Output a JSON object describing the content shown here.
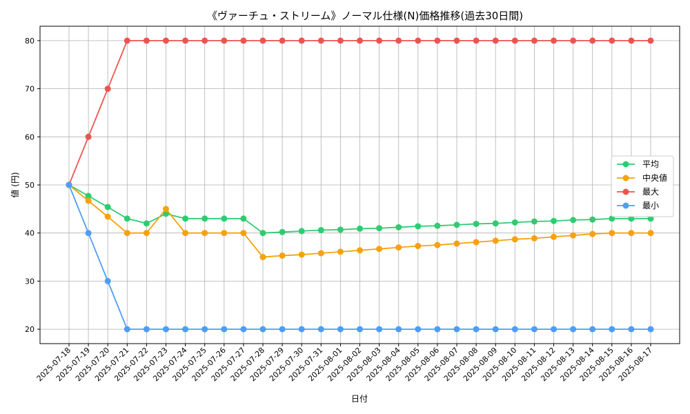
{
  "chart_data": {
    "type": "line",
    "title": "《ヴァーチュ・ストリーム》ノーマル仕様(N)価格推移(過去30日間)",
    "xlabel": "日付",
    "ylabel": "値 (円)",
    "ylim": [
      17,
      83
    ],
    "yticks": [
      20,
      30,
      40,
      50,
      60,
      70,
      80
    ],
    "grid": true,
    "legend_position": "center-right",
    "x": [
      "2025-07-18",
      "2025-07-19",
      "2025-07-20",
      "2025-07-21",
      "2025-07-22",
      "2025-07-23",
      "2025-07-24",
      "2025-07-25",
      "2025-07-26",
      "2025-07-27",
      "2025-07-28",
      "2025-07-29",
      "2025-07-30",
      "2025-07-31",
      "2025-08-01",
      "2025-08-02",
      "2025-08-03",
      "2025-08-04",
      "2025-08-05",
      "2025-08-06",
      "2025-08-07",
      "2025-08-08",
      "2025-08-09",
      "2025-08-10",
      "2025-08-11",
      "2025-08-12",
      "2025-08-13",
      "2025-08-14",
      "2025-08-15",
      "2025-08-16",
      "2025-08-17"
    ],
    "series": [
      {
        "name": "平均",
        "color": "#2ecc71",
        "values": [
          50,
          47.7,
          45.4,
          43,
          42,
          44,
          43,
          43,
          43,
          43,
          40,
          40.2,
          40.4,
          40.6,
          40.7,
          40.9,
          41.0,
          41.2,
          41.4,
          41.5,
          41.7,
          41.9,
          42.0,
          42.2,
          42.4,
          42.5,
          42.7,
          42.8,
          43,
          43,
          43
        ]
      },
      {
        "name": "中央値",
        "color": "#f5a20c",
        "values": [
          50,
          46.7,
          43.4,
          40,
          40,
          45,
          40,
          40,
          40,
          40,
          35,
          35.3,
          35.5,
          35.8,
          36.1,
          36.4,
          36.7,
          37.0,
          37.3,
          37.5,
          37.8,
          38.1,
          38.4,
          38.7,
          38.9,
          39.2,
          39.5,
          39.8,
          40,
          40,
          40
        ]
      },
      {
        "name": "最大",
        "color": "#ef5350",
        "values": [
          50,
          60,
          70,
          80,
          80,
          80,
          80,
          80,
          80,
          80,
          80,
          80,
          80,
          80,
          80,
          80,
          80,
          80,
          80,
          80,
          80,
          80,
          80,
          80,
          80,
          80,
          80,
          80,
          80,
          80,
          80
        ]
      },
      {
        "name": "最小",
        "color": "#4d9df7",
        "values": [
          50,
          40,
          30,
          20,
          20,
          20,
          20,
          20,
          20,
          20,
          20,
          20,
          20,
          20,
          20,
          20,
          20,
          20,
          20,
          20,
          20,
          20,
          20,
          20,
          20,
          20,
          20,
          20,
          20,
          20,
          20
        ]
      }
    ]
  }
}
